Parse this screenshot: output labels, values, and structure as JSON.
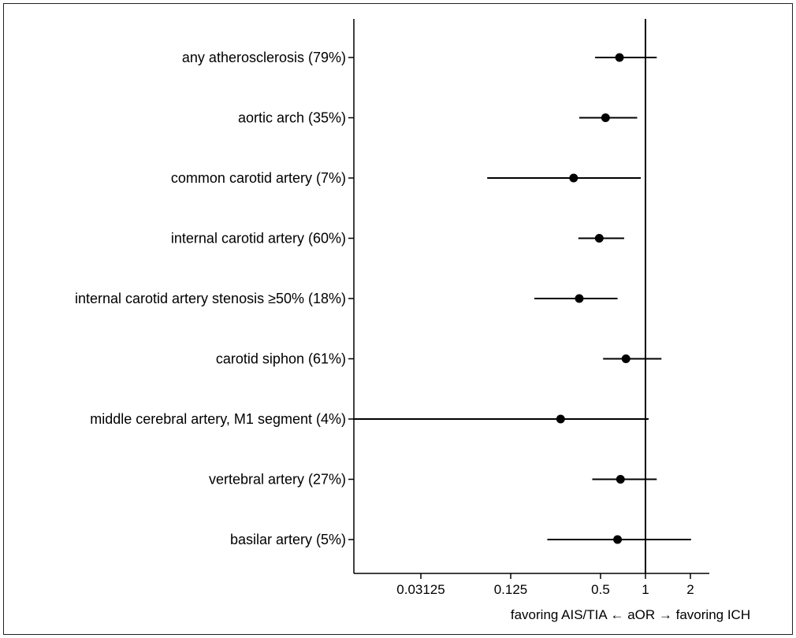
{
  "chart_data": {
    "type": "forest",
    "title": "",
    "xlabel": "favoring AIS/TIA ← aOR → favoring ICH",
    "ylabel": "",
    "x_scale": "log2",
    "xlim": [
      0.009,
      2.6
    ],
    "reference_line": 1,
    "x_ticks": [
      0.03125,
      0.125,
      0.5,
      1,
      2
    ],
    "x_tick_labels": [
      "0.03125",
      "0.125",
      "0.5",
      "1",
      "2"
    ],
    "grid": false,
    "legend": "none",
    "rows": [
      {
        "label": "any atherosclerosis (79%)",
        "estimate": 0.67,
        "lower": 0.46,
        "upper": 1.19
      },
      {
        "label": "aortic arch (35%)",
        "estimate": 0.54,
        "lower": 0.36,
        "upper": 0.88
      },
      {
        "label": "common carotid artery (7%)",
        "estimate": 0.33,
        "lower": 0.087,
        "upper": 0.93
      },
      {
        "label": "internal carotid artery (60%)",
        "estimate": 0.49,
        "lower": 0.355,
        "upper": 0.72
      },
      {
        "label": "internal carotid artery stenosis ≥50% (18%)",
        "estimate": 0.36,
        "lower": 0.18,
        "upper": 0.65
      },
      {
        "label": "carotid siphon (61%)",
        "estimate": 0.74,
        "lower": 0.52,
        "upper": 1.28
      },
      {
        "label": "middle cerebral artery, M1 segment (4%)",
        "estimate": 0.27,
        "lower": 0.011,
        "upper": 1.05
      },
      {
        "label": "vertebral artery (27%)",
        "estimate": 0.68,
        "lower": 0.44,
        "upper": 1.19
      },
      {
        "label": "basilar artery (5%)",
        "estimate": 0.65,
        "lower": 0.22,
        "upper": 2.02
      }
    ]
  }
}
